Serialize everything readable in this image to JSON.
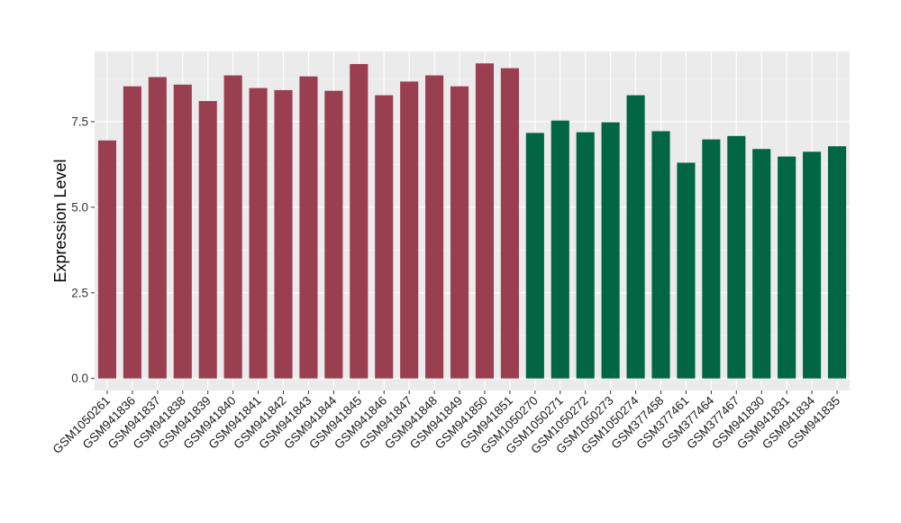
{
  "chart_data": {
    "type": "bar",
    "title": "",
    "xlabel": "",
    "ylabel": "Expression Level",
    "ylim": [
      -0.35,
      9.55
    ],
    "yticks": [
      0.0,
      2.5,
      5.0,
      7.5
    ],
    "ytick_labels": [
      "0.0",
      "2.5",
      "5.0",
      "7.5"
    ],
    "grid": true,
    "legend": "none",
    "colors": {
      "panel_bg": "#ebebeb",
      "grid_major": "#ffffff",
      "group_1": "#9a3f4f",
      "group_2": "#006644"
    },
    "categories": [
      "GSM1050261",
      "GSM941836",
      "GSM941837",
      "GSM941838",
      "GSM941839",
      "GSM941840",
      "GSM941841",
      "GSM941842",
      "GSM941843",
      "GSM941844",
      "GSM941845",
      "GSM941846",
      "GSM941847",
      "GSM941848",
      "GSM941849",
      "GSM941850",
      "GSM941851",
      "GSM1050270",
      "GSM1050271",
      "GSM1050272",
      "GSM1050273",
      "GSM1050274",
      "GSM377458",
      "GSM377461",
      "GSM377464",
      "GSM377467",
      "GSM941830",
      "GSM941831",
      "GSM941834",
      "GSM941835"
    ],
    "values": [
      6.95,
      8.53,
      8.8,
      8.58,
      8.1,
      8.85,
      8.48,
      8.42,
      8.82,
      8.4,
      9.18,
      8.27,
      8.67,
      8.85,
      8.53,
      9.2,
      9.06,
      7.17,
      7.53,
      7.19,
      7.48,
      8.27,
      7.22,
      6.3,
      6.98,
      7.08,
      6.7,
      6.48,
      6.62,
      6.78
    ],
    "bar_groups": [
      "group_1",
      "group_1",
      "group_1",
      "group_1",
      "group_1",
      "group_1",
      "group_1",
      "group_1",
      "group_1",
      "group_1",
      "group_1",
      "group_1",
      "group_1",
      "group_1",
      "group_1",
      "group_1",
      "group_1",
      "group_2",
      "group_2",
      "group_2",
      "group_2",
      "group_2",
      "group_2",
      "group_2",
      "group_2",
      "group_2",
      "group_2",
      "group_2",
      "group_2",
      "group_2"
    ]
  }
}
